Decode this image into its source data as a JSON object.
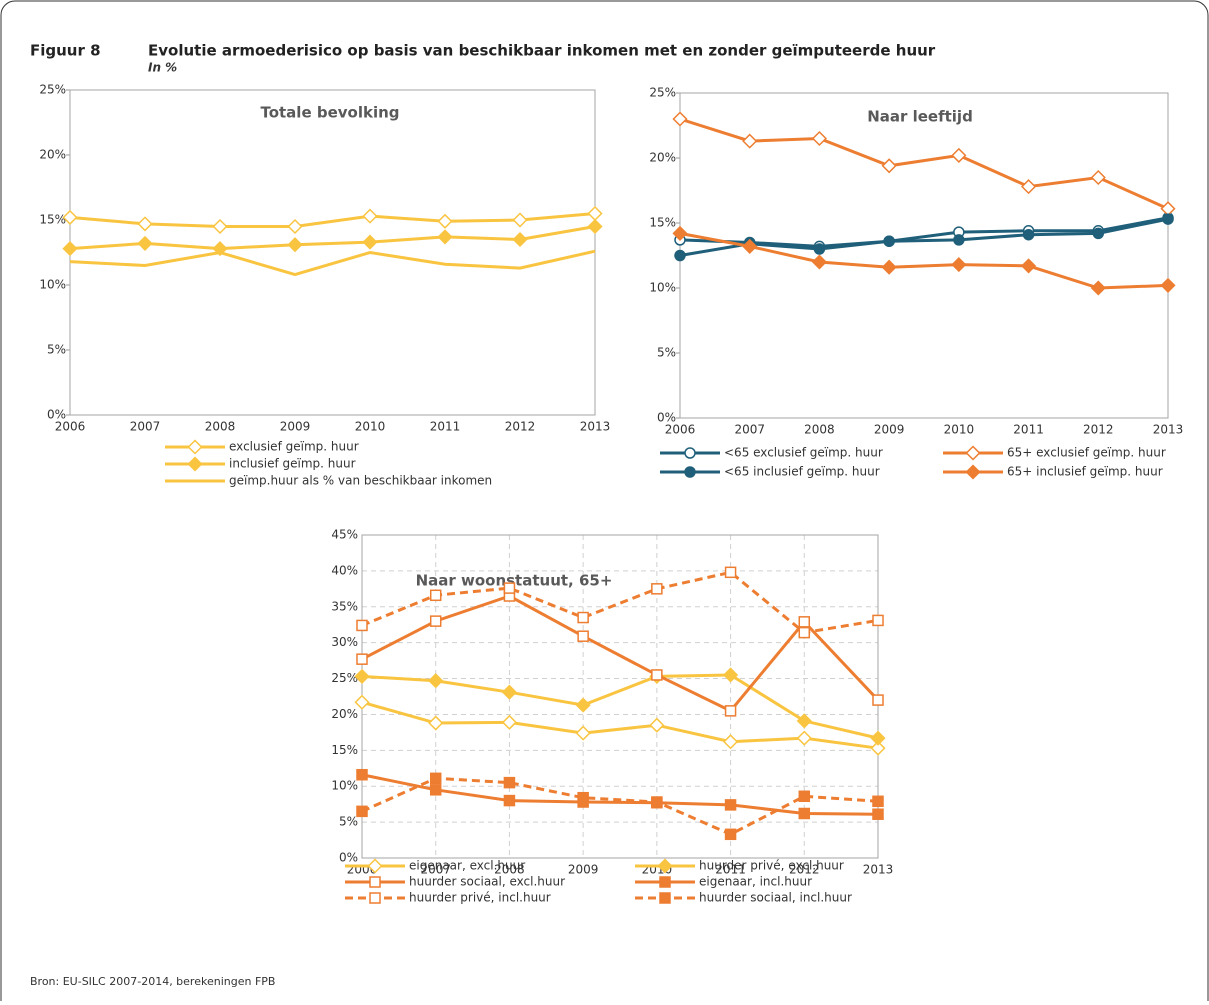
{
  "header": {
    "label": "Figuur 8",
    "title": "Evolutie armoederisico op basis van beschikbaar inkomen met en zonder geïmputeerde huur",
    "subtitle": "In %"
  },
  "source": "Bron: EU-SILC 2007-2014, berekeningen FPB",
  "chart_data": [
    {
      "type": "line",
      "title": "Totale bevolking",
      "categories": [
        "2006",
        "2007",
        "2008",
        "2009",
        "2010",
        "2011",
        "2012",
        "2013"
      ],
      "ylim": [
        0,
        25
      ],
      "yticks": [
        {
          "value": 0,
          "label": "0%"
        },
        {
          "value": 5,
          "label": "5%"
        },
        {
          "value": 10,
          "label": "10%"
        },
        {
          "value": 15,
          "label": "15%"
        },
        {
          "value": 20,
          "label": "20%"
        },
        {
          "value": 25,
          "label": "25%"
        }
      ],
      "grid": false,
      "series": [
        {
          "name": "exclusief geïmp. huur",
          "color": "#f9c440",
          "marker": "diamond-open",
          "values": [
            15.2,
            14.7,
            14.5,
            14.5,
            15.3,
            14.9,
            15.0,
            15.5
          ]
        },
        {
          "name": "inclusief geïmp. huur",
          "color": "#f9c440",
          "marker": "diamond",
          "values": [
            12.8,
            13.2,
            12.8,
            13.1,
            13.3,
            13.7,
            13.5,
            14.5
          ]
        },
        {
          "name": "geïmp.huur als % van beschikbaar inkomen",
          "color": "#f9c440",
          "values": [
            11.8,
            11.5,
            12.5,
            10.8,
            12.5,
            11.6,
            11.3,
            12.6
          ]
        }
      ]
    },
    {
      "type": "line",
      "title": "Naar leeftijd",
      "categories": [
        "2006",
        "2007",
        "2008",
        "2009",
        "2010",
        "2011",
        "2012",
        "2013"
      ],
      "ylim": [
        0,
        25
      ],
      "yticks": [
        {
          "value": 0,
          "label": "0%"
        },
        {
          "value": 5,
          "label": "5%"
        },
        {
          "value": 10,
          "label": "10%"
        },
        {
          "value": 15,
          "label": "15%"
        },
        {
          "value": 20,
          "label": "20%"
        },
        {
          "value": 25,
          "label": "25%"
        }
      ],
      "grid": false,
      "series": [
        {
          "name": "<65 exclusief geïmp. huur",
          "color": "#1f5f7a",
          "marker": "circle-open",
          "values": [
            13.7,
            13.5,
            13.2,
            13.6,
            14.3,
            14.4,
            14.4,
            15.4
          ]
        },
        {
          "name": "65+ exclusief geïmp. huur",
          "color": "#ed7d31",
          "marker": "diamond-open",
          "values": [
            23.0,
            21.3,
            21.5,
            19.4,
            20.2,
            17.8,
            18.5,
            16.1
          ]
        },
        {
          "name": "<65 inclusief geïmp. huur",
          "color": "#1f5f7a",
          "marker": "circle",
          "values": [
            12.5,
            13.4,
            13.0,
            13.6,
            13.7,
            14.1,
            14.2,
            15.3
          ]
        },
        {
          "name": "65+ inclusief geïmp. huur",
          "color": "#ed7d31",
          "marker": "diamond",
          "values": [
            14.2,
            13.2,
            12.0,
            11.6,
            11.8,
            11.7,
            10.0,
            10.2
          ]
        }
      ]
    },
    {
      "type": "line",
      "title": "Naar woonstatuut, 65+",
      "categories": [
        "2006",
        "2007",
        "2008",
        "2009",
        "2010",
        "2011",
        "2012",
        "2013"
      ],
      "ylim": [
        0,
        45
      ],
      "yticks": [
        {
          "value": 0,
          "label": "0%"
        },
        {
          "value": 5,
          "label": "5%"
        },
        {
          "value": 10,
          "label": "10%"
        },
        {
          "value": 15,
          "label": "15%"
        },
        {
          "value": 20,
          "label": "20%"
        },
        {
          "value": 25,
          "label": "25%"
        },
        {
          "value": 30,
          "label": "30%"
        },
        {
          "value": 35,
          "label": "35%"
        },
        {
          "value": 40,
          "label": "40%"
        },
        {
          "value": 45,
          "label": "45%"
        }
      ],
      "grid": true,
      "series": [
        {
          "name": "eigenaar, excl.huur",
          "color": "#f9c440",
          "marker": "diamond-open",
          "values": [
            21.7,
            18.8,
            18.9,
            17.4,
            18.5,
            16.2,
            16.7,
            15.3
          ]
        },
        {
          "name": "huurder privé, excl.huur",
          "color": "#f9c440",
          "marker": "diamond",
          "values": [
            25.3,
            24.7,
            23.1,
            21.3,
            25.3,
            25.5,
            19.1,
            16.7
          ]
        },
        {
          "name": "huurder sociaal, excl.huur",
          "color": "#ed7d31",
          "marker": "square-open",
          "values": [
            27.7,
            33.0,
            36.5,
            30.9,
            25.5,
            20.5,
            32.9,
            22.0
          ]
        },
        {
          "name": "eigenaar, incl.huur",
          "color": "#ed7d31",
          "marker": "square",
          "values": [
            11.6,
            9.5,
            8.0,
            7.8,
            7.7,
            7.4,
            6.2,
            6.1
          ]
        },
        {
          "name": "huurder privé, incl.huur",
          "color": "#ed7d31",
          "marker": "square-open",
          "dashed": true,
          "values": [
            32.4,
            36.6,
            37.6,
            33.5,
            37.5,
            39.8,
            31.4,
            33.1
          ]
        },
        {
          "name": "huurder sociaal, incl.huur",
          "color": "#ed7d31",
          "marker": "square",
          "dashed": true,
          "values": [
            6.5,
            11.1,
            10.5,
            8.4,
            7.8,
            3.3,
            8.6,
            7.9
          ]
        }
      ]
    }
  ]
}
